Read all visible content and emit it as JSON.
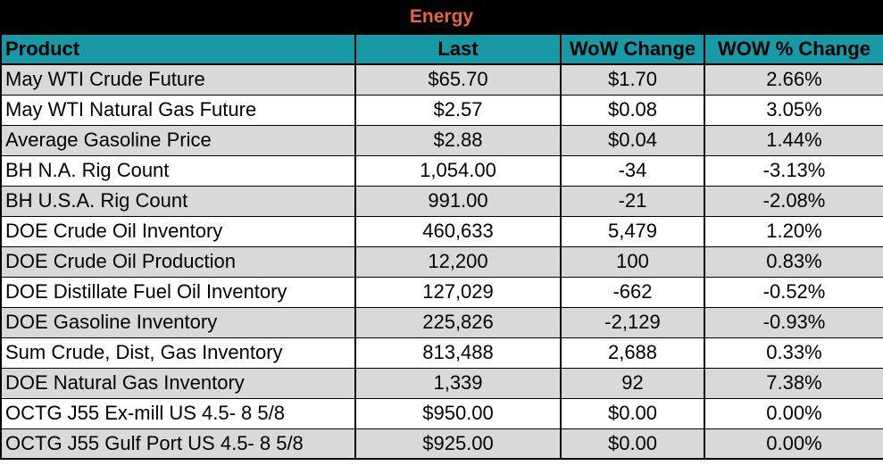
{
  "title": "Energy",
  "colors": {
    "title_bg": "#000000",
    "title_text": "#e8663a",
    "header_bg": "#1799a6",
    "row_shaded": "#d9d9d9",
    "row_plain": "#ffffff"
  },
  "columns": [
    "Product",
    "Last",
    "WoW Change",
    "WOW % Change"
  ],
  "rows": [
    [
      "May WTI Crude Future",
      "$65.70",
      "$1.70",
      "2.66%"
    ],
    [
      "May WTI Natural Gas Future",
      "$2.57",
      "$0.08",
      "3.05%"
    ],
    [
      "Average Gasoline Price",
      "$2.88",
      "$0.04",
      "1.44%"
    ],
    [
      "BH N.A. Rig Count",
      "1,054.00",
      "-34",
      "-3.13%"
    ],
    [
      "BH U.S.A. Rig Count",
      "991.00",
      "-21",
      "-2.08%"
    ],
    [
      "DOE Crude Oil Inventory",
      "460,633",
      "5,479",
      "1.20%"
    ],
    [
      "DOE Crude Oil Production",
      "12,200",
      "100",
      "0.83%"
    ],
    [
      "DOE Distillate Fuel Oil Inventory",
      "127,029",
      "-662",
      "-0.52%"
    ],
    [
      "DOE Gasoline Inventory",
      "225,826",
      "-2,129",
      "-0.93%"
    ],
    [
      "Sum Crude, Dist, Gas Inventory",
      "813,488",
      "2,688",
      "0.33%"
    ],
    [
      "DOE Natural Gas Inventory",
      "1,339",
      "92",
      "7.38%"
    ],
    [
      "OCTG J55 Ex-mill US 4.5- 8 5/8",
      "$950.00",
      "$0.00",
      "0.00%"
    ],
    [
      "OCTG J55 Gulf Port US 4.5- 8 5/8",
      "$925.00",
      "$0.00",
      "0.00%"
    ]
  ]
}
